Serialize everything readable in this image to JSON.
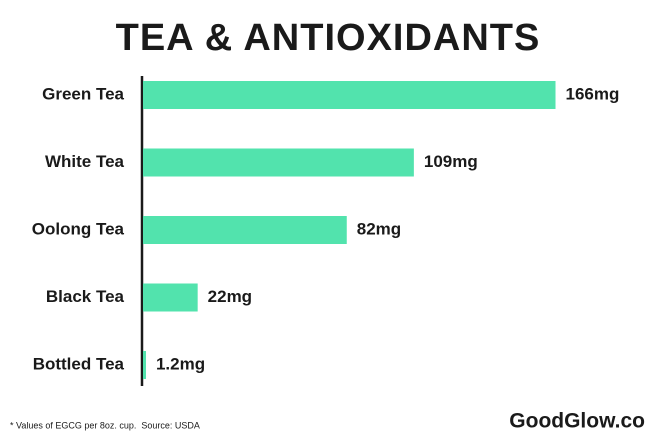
{
  "chart_data": {
    "type": "bar",
    "orientation": "horizontal",
    "title": "TEA & ANTIOXIDANTS",
    "categories": [
      "Green Tea",
      "White Tea",
      "Oolong Tea",
      "Black Tea",
      "Bottled Tea"
    ],
    "values": [
      166,
      109,
      82,
      22,
      1.2
    ],
    "value_labels": [
      "166mg",
      "109mg",
      "82mg",
      "22mg",
      "1.2mg"
    ],
    "color": "#52e3ad",
    "footnote": "* Values of EGCG per 8oz. cup.  Source: USDA",
    "brand": "GoodGlow.co",
    "brand_color": "#4fd89f"
  }
}
